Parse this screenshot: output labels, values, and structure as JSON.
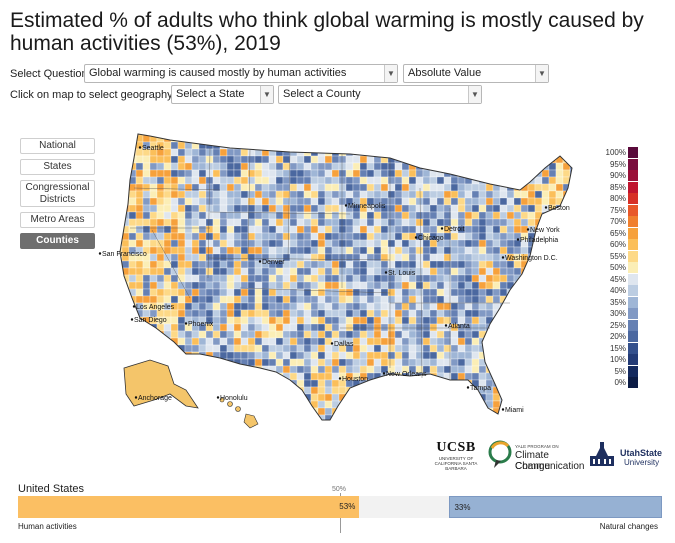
{
  "title": "Estimated % of adults who think global warming is mostly caused by human activities (53%), 2019",
  "controls": {
    "question_label": "Select Question:",
    "question_value": "Global warming is caused mostly by human activities",
    "value_type": "Absolute Value",
    "map_label": "Click on map to select geography, or:",
    "state_placeholder": "Select a State",
    "county_placeholder": "Select a County"
  },
  "geography_buttons": [
    "National",
    "States",
    "Congressional Districts",
    "Metro Areas",
    "Counties"
  ],
  "active_geography": "Counties",
  "cities": [
    "Seattle",
    "Minneapolis",
    "Detroit",
    "Boston",
    "New York",
    "Chicago",
    "Philadelphia",
    "San Francisco",
    "Denver",
    "Washington D.C.",
    "St. Louis",
    "Los Angeles",
    "San Diego",
    "Phoenix",
    "Atlanta",
    "Dallas",
    "Houston",
    "New Orleans",
    "Tampa",
    "Miami",
    "Anchorage",
    "Honolulu"
  ],
  "legend": {
    "labels": [
      "100%",
      "95%",
      "90%",
      "85%",
      "80%",
      "75%",
      "70%",
      "65%",
      "60%",
      "55%",
      "50%",
      "45%",
      "40%",
      "35%",
      "30%",
      "25%",
      "20%",
      "15%",
      "10%",
      "5%",
      "0%"
    ],
    "colors": [
      "#5a0a3b",
      "#7a0d3e",
      "#9a1038",
      "#c0152f",
      "#d73027",
      "#e8582a",
      "#f07f2e",
      "#f6a13c",
      "#fbbf5a",
      "#fdd987",
      "#fbeeb6",
      "#dfe6ef",
      "#bccde2",
      "#9fb6d6",
      "#8199c4",
      "#6580b3",
      "#4b68a0",
      "#34508c",
      "#233b76",
      "#142a5f",
      "#0c1c45"
    ]
  },
  "logos": {
    "ucsb_name": "UCSB",
    "ucsb_sub": "UNIVERSITY OF CALIFORNIA SANTA BARBARA",
    "yale_small": "YALE PROGRAM ON",
    "yale_name_1": "Climate Change",
    "yale_name_2": "Communication",
    "usu_name_1": "UtahState",
    "usu_name_2": "University"
  },
  "bar": {
    "region": "United States",
    "midpoint_label": "50%",
    "human_pct": 53,
    "human_label": "53%",
    "natural_pct": 33,
    "natural_label": "33%",
    "left_caption": "Human activities",
    "right_caption": "Natural changes",
    "human_color": "#fbbf63",
    "neutral_color": "#f2f2f2",
    "natural_color": "#96b1d3"
  }
}
